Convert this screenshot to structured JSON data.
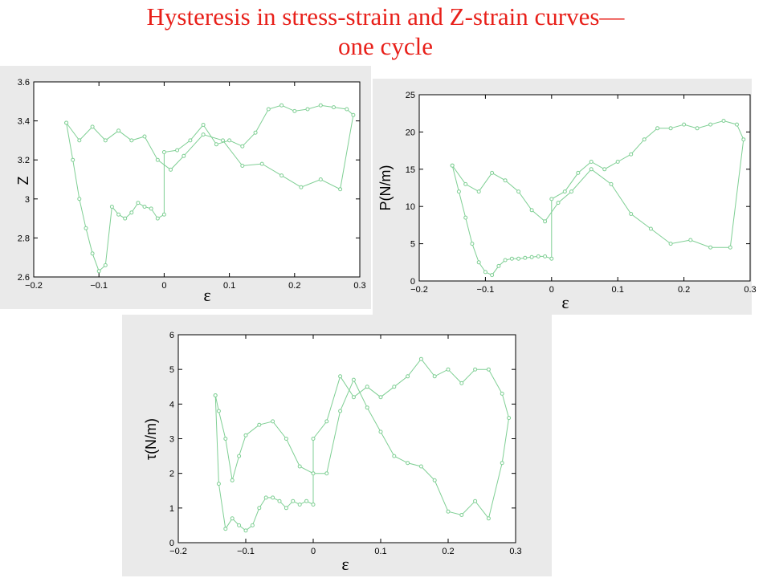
{
  "slide": {
    "title_line1": "Hysteresis in stress-strain and Z-strain curves—",
    "title_line2": "one cycle"
  },
  "colors": {
    "title": "#e8201a",
    "series": "#7fcf94",
    "axis": "#000000",
    "panel_background": "#eaeaea"
  },
  "chart_data": [
    {
      "type": "line",
      "xlabel": "ε",
      "ylabel": "Z",
      "xlim": [
        -0.2,
        0.3
      ],
      "ylim": [
        2.6,
        3.6
      ],
      "xticks": [
        "−0.2",
        "−0.1",
        "0",
        "0.1",
        "0.2",
        "0.3"
      ],
      "yticks": [
        "2.6",
        "2.8",
        "3",
        "3.2",
        "3.4",
        "3.6"
      ],
      "grid": false,
      "x": [
        -0.15,
        -0.14,
        -0.13,
        -0.12,
        -0.11,
        -0.1,
        -0.09,
        -0.08,
        -0.07,
        -0.06,
        -0.05,
        -0.04,
        -0.03,
        -0.02,
        -0.01,
        0.0,
        0.0,
        0.02,
        0.04,
        0.06,
        0.08,
        0.1,
        0.12,
        0.14,
        0.16,
        0.18,
        0.2,
        0.22,
        0.24,
        0.26,
        0.28,
        0.29,
        0.27,
        0.24,
        0.21,
        0.18,
        0.15,
        0.12,
        0.09,
        0.06,
        0.03,
        0.01,
        -0.01,
        -0.03,
        -0.05,
        -0.07,
        -0.09,
        -0.11,
        -0.13,
        -0.15
      ],
      "y": [
        3.39,
        3.2,
        3.0,
        2.85,
        2.72,
        2.63,
        2.66,
        2.96,
        2.92,
        2.9,
        2.93,
        2.98,
        2.96,
        2.95,
        2.9,
        2.92,
        3.24,
        3.25,
        3.3,
        3.38,
        3.28,
        3.3,
        3.27,
        3.34,
        3.46,
        3.48,
        3.45,
        3.46,
        3.48,
        3.47,
        3.46,
        3.43,
        3.05,
        3.1,
        3.06,
        3.12,
        3.18,
        3.17,
        3.3,
        3.33,
        3.22,
        3.15,
        3.2,
        3.32,
        3.3,
        3.35,
        3.3,
        3.37,
        3.3,
        3.39
      ]
    },
    {
      "type": "line",
      "xlabel": "ε",
      "ylabel": "P(N/m)",
      "xlim": [
        -0.2,
        0.3
      ],
      "ylim": [
        0,
        25
      ],
      "xticks": [
        "−0.2",
        "−0.1",
        "0",
        "0.1",
        "0.2",
        "0.3"
      ],
      "yticks": [
        "0",
        "5",
        "10",
        "15",
        "20",
        "25"
      ],
      "grid": false,
      "x": [
        -0.15,
        -0.14,
        -0.13,
        -0.12,
        -0.11,
        -0.1,
        -0.09,
        -0.08,
        -0.07,
        -0.06,
        -0.05,
        -0.04,
        -0.03,
        -0.02,
        -0.01,
        0.0,
        0.0,
        0.02,
        0.04,
        0.06,
        0.08,
        0.1,
        0.12,
        0.14,
        0.16,
        0.18,
        0.2,
        0.22,
        0.24,
        0.26,
        0.28,
        0.29,
        0.27,
        0.24,
        0.21,
        0.18,
        0.15,
        0.12,
        0.09,
        0.06,
        0.03,
        0.01,
        -0.01,
        -0.03,
        -0.05,
        -0.07,
        -0.09,
        -0.11,
        -0.13,
        -0.15
      ],
      "y": [
        15.5,
        12.0,
        8.5,
        5.0,
        2.5,
        1.2,
        0.8,
        2.0,
        2.8,
        3.0,
        3.0,
        3.1,
        3.2,
        3.3,
        3.3,
        3.0,
        11.0,
        12.0,
        14.5,
        16.0,
        15.0,
        16.0,
        17.0,
        19.0,
        20.5,
        20.5,
        21.0,
        20.5,
        21.0,
        21.5,
        21.0,
        19.0,
        4.5,
        4.5,
        5.5,
        5.0,
        7.0,
        9.0,
        13.0,
        15.0,
        12.0,
        10.5,
        8.0,
        9.5,
        12.0,
        13.5,
        14.5,
        12.0,
        13.0,
        15.5
      ]
    },
    {
      "type": "line",
      "xlabel": "ε",
      "ylabel": "τ(N/m)",
      "xlim": [
        -0.2,
        0.3
      ],
      "ylim": [
        0,
        6
      ],
      "xticks": [
        "−0.2",
        "−0.1",
        "0",
        "0.1",
        "0.2",
        "0.3"
      ],
      "yticks": [
        "0",
        "1",
        "2",
        "3",
        "4",
        "5",
        "6"
      ],
      "grid": false,
      "x": [
        -0.145,
        -0.14,
        -0.13,
        -0.12,
        -0.11,
        -0.1,
        -0.09,
        -0.08,
        -0.07,
        -0.06,
        -0.05,
        -0.04,
        -0.03,
        -0.02,
        -0.01,
        0.0,
        0.0,
        0.02,
        0.04,
        0.06,
        0.08,
        0.1,
        0.12,
        0.14,
        0.16,
        0.18,
        0.2,
        0.22,
        0.24,
        0.26,
        0.28,
        0.29,
        0.28,
        0.26,
        0.24,
        0.22,
        0.2,
        0.18,
        0.16,
        0.14,
        0.12,
        0.1,
        0.08,
        0.06,
        0.04,
        0.02,
        0.0,
        -0.02,
        -0.04,
        -0.06,
        -0.08,
        -0.1,
        -0.11,
        -0.12,
        -0.13,
        -0.14,
        -0.145
      ],
      "y": [
        4.25,
        1.7,
        0.4,
        0.7,
        0.5,
        0.35,
        0.5,
        1.0,
        1.3,
        1.3,
        1.2,
        1.0,
        1.2,
        1.1,
        1.2,
        1.1,
        3.0,
        3.5,
        4.8,
        4.2,
        4.5,
        4.2,
        4.5,
        4.8,
        5.3,
        4.8,
        5.0,
        4.6,
        5.0,
        5.0,
        4.3,
        3.6,
        2.3,
        0.7,
        1.2,
        0.8,
        0.9,
        1.8,
        2.2,
        2.3,
        2.5,
        3.2,
        3.9,
        4.7,
        3.8,
        2.0,
        2.0,
        2.2,
        3.0,
        3.5,
        3.4,
        3.1,
        2.5,
        1.8,
        3.0,
        3.8,
        4.25
      ]
    }
  ]
}
